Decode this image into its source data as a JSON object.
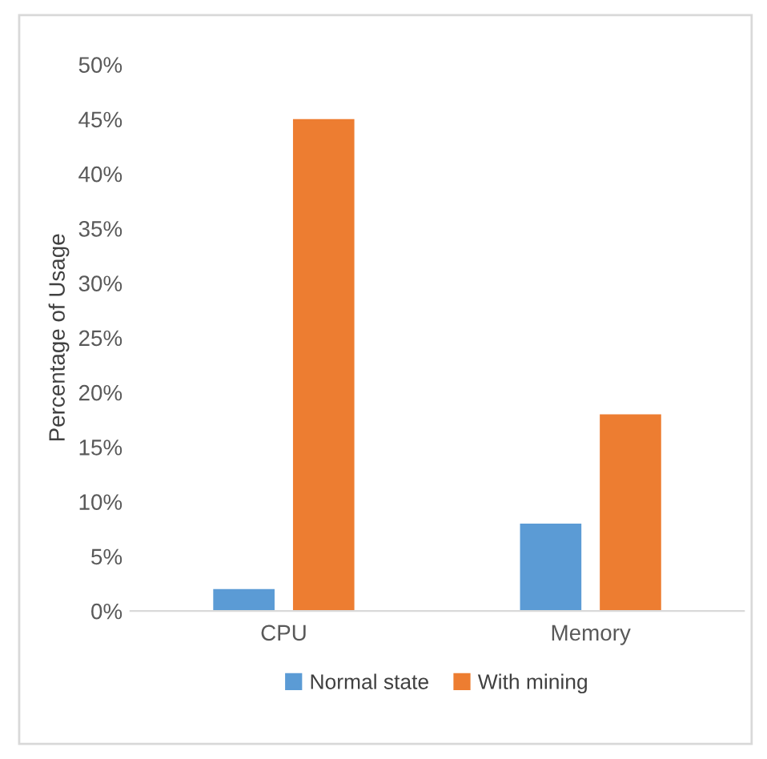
{
  "chart_data": {
    "type": "bar",
    "ylabel": "Percentage of Usage",
    "categories": [
      "CPU",
      "Memory"
    ],
    "series": [
      {
        "name": "Normal state",
        "color": "#5b9bd5",
        "values": [
          2,
          8
        ]
      },
      {
        "name": "With mining",
        "color": "#ed7d31",
        "values": [
          45,
          18
        ]
      }
    ],
    "ylim": [
      0,
      50
    ],
    "yticks": [
      {
        "value": 0,
        "label": "0%"
      },
      {
        "value": 5,
        "label": "5%"
      },
      {
        "value": 10,
        "label": "10%"
      },
      {
        "value": 15,
        "label": "15%"
      },
      {
        "value": 20,
        "label": "20%"
      },
      {
        "value": 25,
        "label": "25%"
      },
      {
        "value": 30,
        "label": "30%"
      },
      {
        "value": 35,
        "label": "35%"
      },
      {
        "value": 40,
        "label": "40%"
      },
      {
        "value": 45,
        "label": "45%"
      },
      {
        "value": 50,
        "label": "50%"
      }
    ],
    "grid": false,
    "legend": "bottom"
  }
}
